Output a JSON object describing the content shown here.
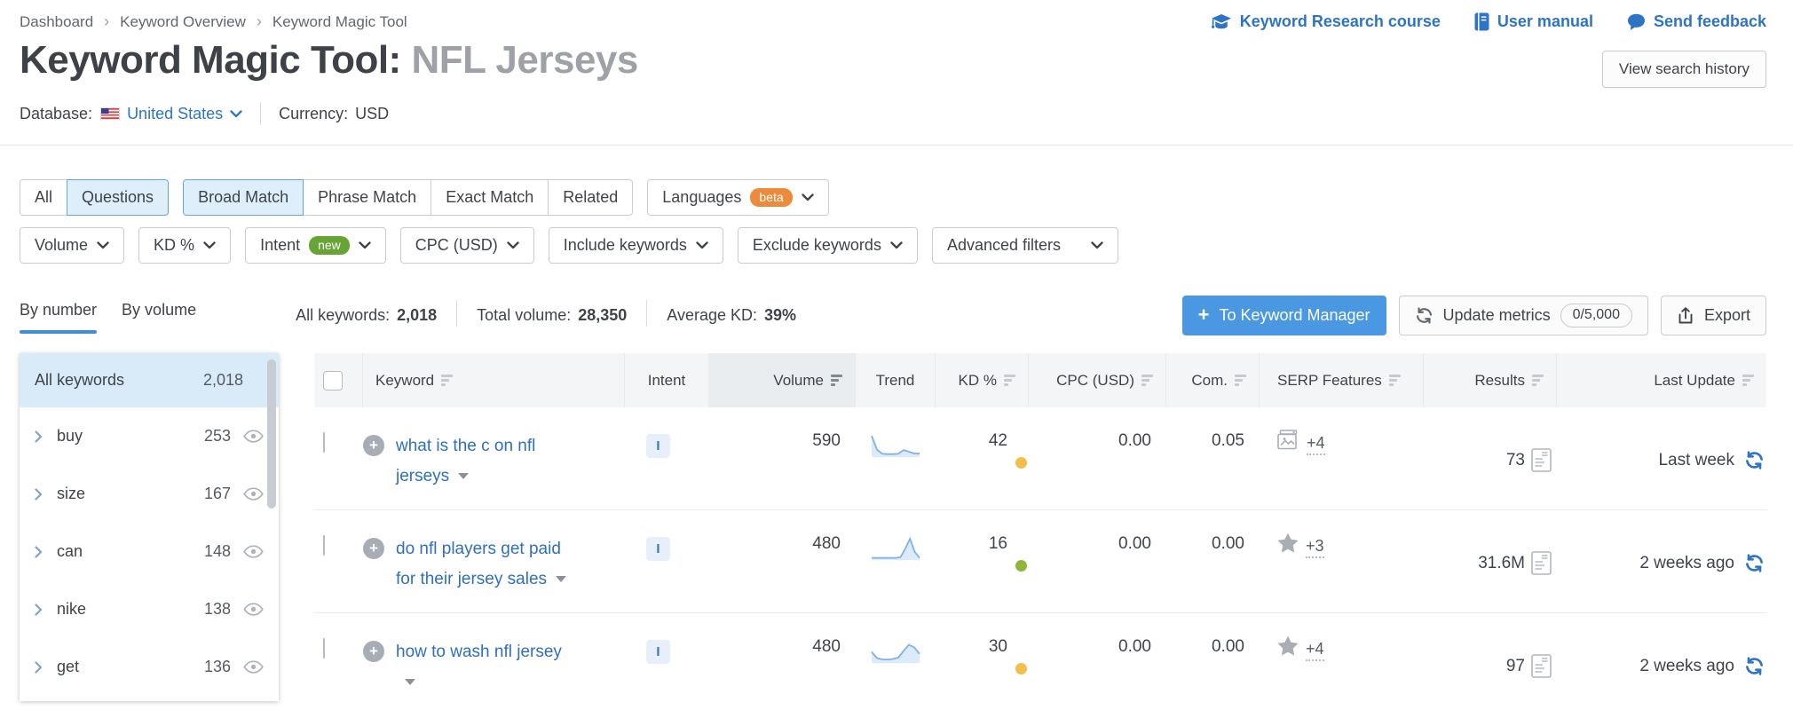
{
  "breadcrumb": {
    "items": [
      {
        "label": "Dashboard"
      },
      {
        "label": "Keyword Overview"
      },
      {
        "label": "Keyword Magic Tool"
      }
    ]
  },
  "top_links": {
    "course": "Keyword Research course",
    "manual": "User manual",
    "feedback": "Send feedback"
  },
  "title": {
    "main": "Keyword Magic Tool:",
    "query": "NFL Jerseys"
  },
  "view_search_history": "View search history",
  "database_bar": {
    "database_label": "Database:",
    "database_value": "United States",
    "currency_label": "Currency:",
    "currency_value": "USD"
  },
  "filters": {
    "scope": [
      {
        "label": "All"
      },
      {
        "label": "Questions"
      }
    ],
    "match": [
      {
        "label": "Broad Match"
      },
      {
        "label": "Phrase Match"
      },
      {
        "label": "Exact Match"
      },
      {
        "label": "Related"
      }
    ],
    "languages": {
      "label": "Languages",
      "badge": "beta"
    },
    "volume": "Volume",
    "kd": "KD %",
    "intent": {
      "label": "Intent",
      "badge": "new"
    },
    "cpc": "CPC (USD)",
    "include": "Include keywords",
    "exclude": "Exclude keywords",
    "advanced": "Advanced filters"
  },
  "stats_bar": {
    "tabs": [
      {
        "label": "By number"
      },
      {
        "label": "By volume"
      }
    ],
    "all_keywords_label": "All keywords:",
    "all_keywords_value": "2,018",
    "total_volume_label": "Total volume:",
    "total_volume_value": "28,350",
    "average_kd_label": "Average KD:",
    "average_kd_value": "39%",
    "to_keyword_manager": "To Keyword Manager",
    "update_metrics": "Update metrics",
    "update_metrics_count": "0/5,000",
    "export": "Export"
  },
  "sidebar": {
    "header": {
      "label": "All keywords",
      "count": "2,018"
    },
    "items": [
      {
        "label": "buy",
        "count": "253"
      },
      {
        "label": "size",
        "count": "167"
      },
      {
        "label": "can",
        "count": "148"
      },
      {
        "label": "nike",
        "count": "138"
      },
      {
        "label": "get",
        "count": "136"
      }
    ]
  },
  "table": {
    "headers": {
      "keyword": "Keyword",
      "intent": "Intent",
      "volume": "Volume",
      "trend": "Trend",
      "kd": "KD %",
      "cpc": "CPC (USD)",
      "com": "Com.",
      "serp": "SERP Features",
      "results": "Results",
      "last_update": "Last Update"
    },
    "rows": [
      {
        "keyword": "what is the c on nfl jerseys",
        "intent": "I",
        "volume": "590",
        "trend": [
          1,
          0.32,
          0.12,
          0.1,
          0.1,
          0.12,
          0.3,
          0.22,
          0.13,
          0.13
        ],
        "kd": "42",
        "kd_color": "#F1BF4A",
        "cpc": "0.00",
        "com": "0.05",
        "serp_icon": "image-icon",
        "serp_more": "+4",
        "results": "73",
        "last_update": "Last week"
      },
      {
        "keyword": "do nfl players get paid for their jersey sales",
        "intent": "I",
        "volume": "480",
        "trend": [
          0.06,
          0.06,
          0.06,
          0.06,
          0.06,
          0.06,
          0.09,
          0.5,
          1,
          0.35,
          0.06
        ],
        "kd": "16",
        "kd_color": "#8FB53B",
        "cpc": "0.00",
        "com": "0.00",
        "serp_icon": "star-icon",
        "serp_more": "+3",
        "results": "31.6M",
        "last_update": "2 weeks ago"
      },
      {
        "keyword": "how to wash nfl jersey",
        "intent": "I",
        "volume": "480",
        "trend": [
          0.5,
          0.2,
          0.13,
          0.12,
          0.15,
          0.22,
          0.55,
          0.85,
          0.72,
          0.4
        ],
        "kd": "30",
        "kd_color": "#F1BF4A",
        "cpc": "0.00",
        "com": "0.00",
        "serp_icon": "star-icon",
        "serp_more": "+4",
        "results": "97",
        "last_update": "2 weeks ago"
      }
    ]
  },
  "colors": {
    "accent_blue": "#2E74C4",
    "button_blue": "#4A97E2",
    "active_filter_bg": "#DFEEFB",
    "beta_orange": "#EE8A3C",
    "new_green": "#67A436",
    "kd_yellow": "#F1BF4A",
    "kd_green": "#8FB53B",
    "sparkline_line": "#7FB0E8",
    "sparkline_fill": "#DCEBF9"
  }
}
